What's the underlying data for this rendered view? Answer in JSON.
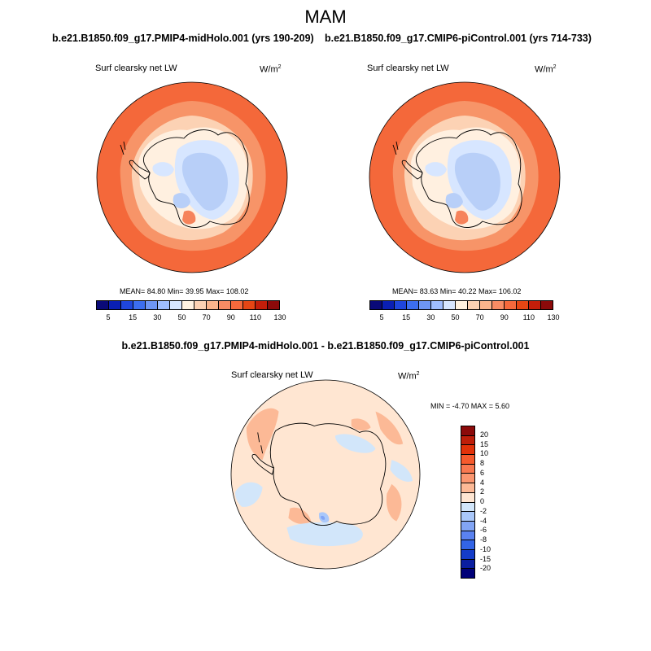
{
  "main_title": "MAM",
  "panels": [
    {
      "run_title": "b.e21.B1850.f09_g17.PMIP4-midHolo.001 (yrs 190-209)",
      "variable": "Surf clearsky net LW",
      "units": "W/m",
      "units_exp": "2",
      "stats": "MEAN=  84.80  Min=  39.95  Max= 108.02"
    },
    {
      "run_title": "b.e21.B1850.f09_g17.CMIP6-piControl.001 (yrs 714-733)",
      "variable": "Surf clearsky net LW",
      "units": "W/m",
      "units_exp": "2",
      "stats": "MEAN=  83.63  Min=  40.22  Max= 106.02"
    }
  ],
  "abs_colorbar": {
    "colors": [
      "#0a0a78",
      "#0a1fb4",
      "#1f46dc",
      "#3c6ef0",
      "#6e96f5",
      "#a0beff",
      "#d7e6ff",
      "#fff2e1",
      "#fcd2b4",
      "#fab48c",
      "#f88c64",
      "#f5693c",
      "#e64614",
      "#c31e0a",
      "#8c0a0a"
    ],
    "labels": [
      "5",
      "15",
      "30",
      "50",
      "70",
      "90",
      "110",
      "130"
    ]
  },
  "diff": {
    "title": "b.e21.B1850.f09_g17.PMIP4-midHolo.001 - b.e21.B1850.f09_g17.CMIP6-piControl.001",
    "variable": "Surf clearsky net LW",
    "units": "W/m",
    "units_exp": "2",
    "stats": "MIN =  -4.70 MAX =   5.60",
    "colorbar": {
      "colors": [
        "#8c0a0a",
        "#be1e0a",
        "#e1320a",
        "#f55a2d",
        "#f87850",
        "#fa9670",
        "#fcb996",
        "#ffe6d2",
        "#d2e6fa",
        "#aac8fa",
        "#82a5f5",
        "#5a82f0",
        "#3264e6",
        "#143cc8",
        "#0a1ea0",
        "#000078"
      ],
      "labels": [
        "20",
        "15",
        "10",
        "8",
        "6",
        "4",
        "2",
        "0",
        "-2",
        "-4",
        "-6",
        "-8",
        "-10",
        "-15",
        "-20"
      ]
    }
  },
  "colors": {
    "outer_ring": "#f4683a",
    "mid_ring": "#f79468",
    "inner_ring": "#fcd2b4",
    "coast_pale": "#fff0e0",
    "interior_light": "#d7e6ff",
    "interior_blue": "#b8cff8",
    "diff_base": "#ffe6d2",
    "diff_warm": "#fcb996",
    "diff_cool": "#d2e6fa",
    "diff_cool2": "#aac8fa",
    "diff_cool3": "#82a5f5"
  }
}
